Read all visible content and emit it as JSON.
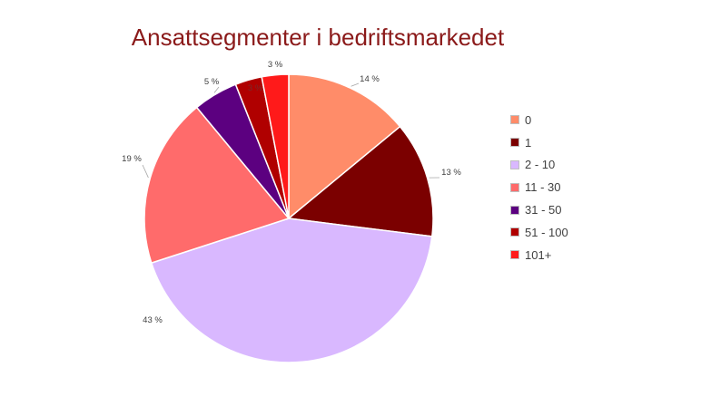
{
  "chart_data": {
    "type": "pie",
    "title": "Ansattsegmenter i bedriftsmarkedet",
    "categories": [
      "0",
      "1",
      "2 - 10",
      "11 - 30",
      "31 - 50",
      "51 - 100",
      "101+"
    ],
    "values": [
      14,
      13,
      43,
      19,
      5,
      3,
      3
    ],
    "labels": [
      "14 %",
      "13 %",
      "43 %",
      "19 %",
      "5 %",
      "3 %",
      "3 %"
    ],
    "colors": [
      "#ff8c69",
      "#7b0000",
      "#d9b8ff",
      "#ff6b6b",
      "#5c0080",
      "#b00000",
      "#ff1a1a"
    ],
    "legend_position": "right"
  }
}
